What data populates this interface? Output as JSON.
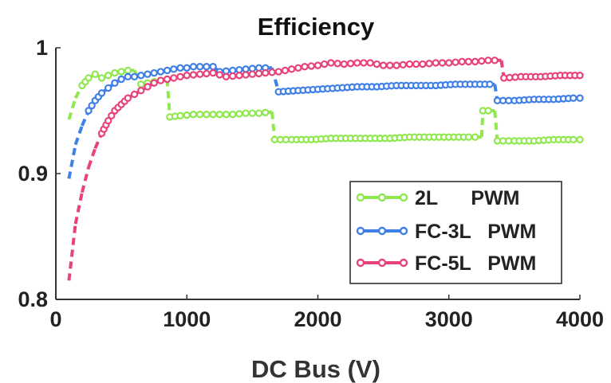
{
  "chart_data": {
    "type": "line",
    "title": "Efficiency",
    "xlabel": "DC Bus (V)",
    "ylabel": "",
    "xlim": [
      0,
      4000
    ],
    "ylim": [
      0.8,
      1.0
    ],
    "xticks": [
      0,
      1000,
      2000,
      3000,
      4000
    ],
    "yticks": [
      0.8,
      0.9,
      1.0
    ],
    "xtick_labels": [
      "0",
      "1000",
      "2000",
      "3000",
      "4000"
    ],
    "ytick_labels": [
      "0.8",
      "0.9",
      "1"
    ],
    "grid": false,
    "legend_position": "bottom-right",
    "series": [
      {
        "name": "2L      PWM",
        "color": "#8ee84e",
        "points": [
          [
            100,
            0.943
          ],
          [
            150,
            0.96
          ],
          [
            200,
            0.97
          ],
          [
            250,
            0.976
          ],
          [
            300,
            0.979
          ],
          [
            350,
            0.976
          ],
          [
            400,
            0.978
          ],
          [
            450,
            0.98
          ],
          [
            500,
            0.981
          ],
          [
            550,
            0.982
          ],
          [
            600,
            0.982
          ],
          [
            650,
            0.971
          ],
          [
            700,
            0.972
          ],
          [
            750,
            0.973
          ],
          [
            800,
            0.974
          ],
          [
            850,
            0.975
          ],
          [
            870,
            0.945
          ],
          [
            950,
            0.946
          ],
          [
            1050,
            0.947
          ],
          [
            1150,
            0.947
          ],
          [
            1250,
            0.947
          ],
          [
            1350,
            0.947
          ],
          [
            1450,
            0.948
          ],
          [
            1550,
            0.948
          ],
          [
            1650,
            0.949
          ],
          [
            1670,
            0.927
          ],
          [
            1800,
            0.927
          ],
          [
            1950,
            0.927
          ],
          [
            2100,
            0.928
          ],
          [
            2250,
            0.928
          ],
          [
            2400,
            0.928
          ],
          [
            2550,
            0.928
          ],
          [
            2700,
            0.929
          ],
          [
            2850,
            0.929
          ],
          [
            3000,
            0.929
          ],
          [
            3150,
            0.929
          ],
          [
            3250,
            0.929
          ],
          [
            3260,
            0.95
          ],
          [
            3300,
            0.95
          ],
          [
            3350,
            0.95
          ],
          [
            3370,
            0.926
          ],
          [
            3500,
            0.926
          ],
          [
            3650,
            0.926
          ],
          [
            3800,
            0.927
          ],
          [
            3950,
            0.927
          ],
          [
            4000,
            0.927
          ]
        ]
      },
      {
        "name": "FC-3L   PWM",
        "color": "#3f7fe6",
        "points": [
          [
            100,
            0.896
          ],
          [
            150,
            0.923
          ],
          [
            200,
            0.938
          ],
          [
            250,
            0.95
          ],
          [
            300,
            0.958
          ],
          [
            350,
            0.964
          ],
          [
            400,
            0.968
          ],
          [
            450,
            0.972
          ],
          [
            500,
            0.975
          ],
          [
            550,
            0.977
          ],
          [
            600,
            0.977
          ],
          [
            650,
            0.978
          ],
          [
            700,
            0.979
          ],
          [
            750,
            0.98
          ],
          [
            800,
            0.981
          ],
          [
            850,
            0.982
          ],
          [
            900,
            0.983
          ],
          [
            950,
            0.984
          ],
          [
            1000,
            0.984
          ],
          [
            1050,
            0.985
          ],
          [
            1100,
            0.985
          ],
          [
            1150,
            0.985
          ],
          [
            1200,
            0.985
          ],
          [
            1250,
            0.981
          ],
          [
            1350,
            0.982
          ],
          [
            1450,
            0.983
          ],
          [
            1550,
            0.984
          ],
          [
            1650,
            0.984
          ],
          [
            1700,
            0.965
          ],
          [
            1850,
            0.966
          ],
          [
            2000,
            0.967
          ],
          [
            2150,
            0.968
          ],
          [
            2300,
            0.969
          ],
          [
            2450,
            0.969
          ],
          [
            2600,
            0.97
          ],
          [
            2750,
            0.97
          ],
          [
            2900,
            0.97
          ],
          [
            3050,
            0.971
          ],
          [
            3200,
            0.971
          ],
          [
            3350,
            0.971
          ],
          [
            3370,
            0.958
          ],
          [
            3500,
            0.958
          ],
          [
            3650,
            0.959
          ],
          [
            3800,
            0.959
          ],
          [
            3950,
            0.96
          ],
          [
            4000,
            0.96
          ]
        ]
      },
      {
        "name": "FC-5L   PWM",
        "color": "#e8427a",
        "points": [
          [
            100,
            0.815
          ],
          [
            150,
            0.86
          ],
          [
            200,
            0.885
          ],
          [
            250,
            0.905
          ],
          [
            300,
            0.92
          ],
          [
            350,
            0.932
          ],
          [
            400,
            0.942
          ],
          [
            450,
            0.95
          ],
          [
            500,
            0.955
          ],
          [
            550,
            0.96
          ],
          [
            600,
            0.963
          ],
          [
            650,
            0.966
          ],
          [
            700,
            0.969
          ],
          [
            750,
            0.972
          ],
          [
            800,
            0.974
          ],
          [
            850,
            0.975
          ],
          [
            900,
            0.976
          ],
          [
            950,
            0.977
          ],
          [
            1000,
            0.978
          ],
          [
            1100,
            0.979
          ],
          [
            1200,
            0.98
          ],
          [
            1300,
            0.977
          ],
          [
            1400,
            0.978
          ],
          [
            1500,
            0.979
          ],
          [
            1600,
            0.98
          ],
          [
            1700,
            0.981
          ],
          [
            1800,
            0.983
          ],
          [
            1900,
            0.985
          ],
          [
            2000,
            0.986
          ],
          [
            2100,
            0.988
          ],
          [
            2200,
            0.987
          ],
          [
            2300,
            0.988
          ],
          [
            2400,
            0.988
          ],
          [
            2500,
            0.986
          ],
          [
            2600,
            0.986
          ],
          [
            2700,
            0.987
          ],
          [
            2800,
            0.987
          ],
          [
            2900,
            0.988
          ],
          [
            3000,
            0.988
          ],
          [
            3100,
            0.989
          ],
          [
            3200,
            0.989
          ],
          [
            3300,
            0.99
          ],
          [
            3400,
            0.99
          ],
          [
            3420,
            0.976
          ],
          [
            3550,
            0.977
          ],
          [
            3700,
            0.977
          ],
          [
            3850,
            0.978
          ],
          [
            4000,
            0.978
          ]
        ]
      }
    ]
  }
}
